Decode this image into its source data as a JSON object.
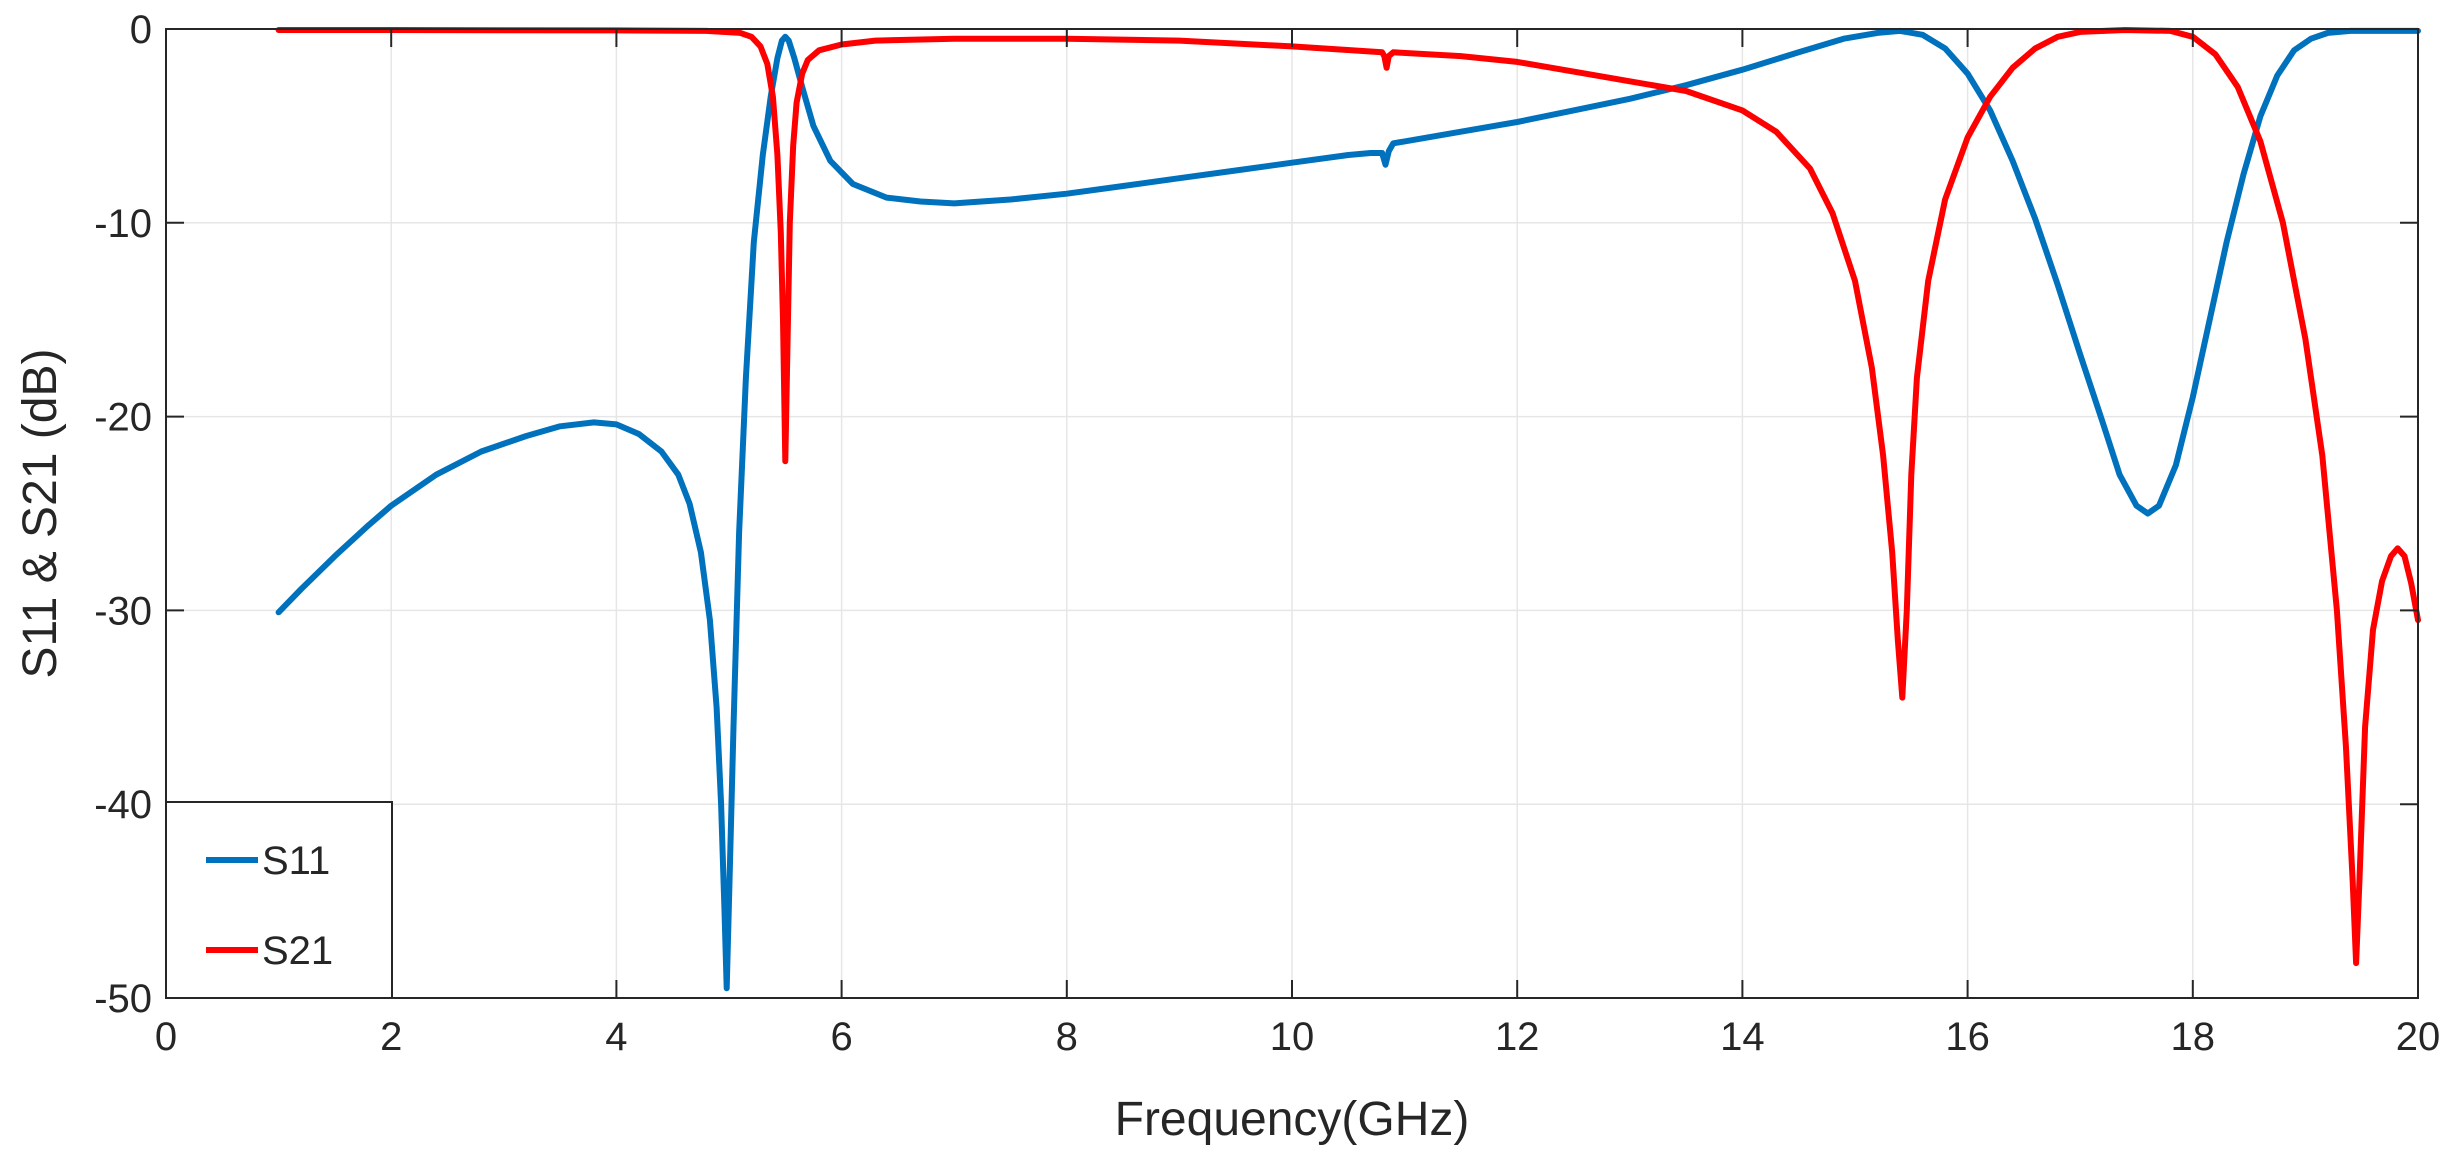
{
  "chart_data": {
    "type": "line",
    "title": "",
    "xlabel": "Frequency(GHz)",
    "ylabel": "S11 & S21 (dB)",
    "xlim": [
      0,
      20
    ],
    "ylim": [
      -50,
      0
    ],
    "xticks": [
      0,
      2,
      4,
      6,
      8,
      10,
      12,
      14,
      16,
      18,
      20
    ],
    "yticks": [
      0,
      -10,
      -20,
      -30,
      -40,
      -50
    ],
    "xtick_labels": [
      "0",
      "2",
      "4",
      "6",
      "8",
      "10",
      "12",
      "14",
      "16",
      "18",
      "20"
    ],
    "ytick_labels": [
      "0",
      "-10",
      "-20",
      "-30",
      "-40",
      "-50"
    ],
    "grid": true,
    "legend_position": "bottom-left",
    "series": [
      {
        "name": "S11",
        "color": "#0072bd",
        "points": [
          [
            1.0,
            -30.1
          ],
          [
            1.2,
            -28.9
          ],
          [
            1.5,
            -27.2
          ],
          [
            1.8,
            -25.6
          ],
          [
            2.0,
            -24.6
          ],
          [
            2.4,
            -23.0
          ],
          [
            2.8,
            -21.8
          ],
          [
            3.2,
            -21.0
          ],
          [
            3.5,
            -20.5
          ],
          [
            3.8,
            -20.3
          ],
          [
            4.0,
            -20.4
          ],
          [
            4.2,
            -20.9
          ],
          [
            4.4,
            -21.8
          ],
          [
            4.55,
            -23.0
          ],
          [
            4.65,
            -24.5
          ],
          [
            4.75,
            -27.0
          ],
          [
            4.83,
            -30.5
          ],
          [
            4.89,
            -35.0
          ],
          [
            4.93,
            -40.0
          ],
          [
            4.96,
            -45.5
          ],
          [
            4.98,
            -49.5
          ],
          [
            5.0,
            -45.0
          ],
          [
            5.04,
            -36.0
          ],
          [
            5.09,
            -26.0
          ],
          [
            5.15,
            -18.0
          ],
          [
            5.22,
            -11.0
          ],
          [
            5.3,
            -6.5
          ],
          [
            5.37,
            -3.5
          ],
          [
            5.43,
            -1.5
          ],
          [
            5.47,
            -0.6
          ],
          [
            5.5,
            -0.4
          ],
          [
            5.53,
            -0.6
          ],
          [
            5.58,
            -1.5
          ],
          [
            5.65,
            -3.0
          ],
          [
            5.75,
            -5.0
          ],
          [
            5.9,
            -6.8
          ],
          [
            6.1,
            -8.0
          ],
          [
            6.4,
            -8.7
          ],
          [
            6.7,
            -8.9
          ],
          [
            7.0,
            -9.0
          ],
          [
            7.5,
            -8.8
          ],
          [
            8.0,
            -8.5
          ],
          [
            8.5,
            -8.1
          ],
          [
            9.0,
            -7.7
          ],
          [
            9.5,
            -7.3
          ],
          [
            10.0,
            -6.9
          ],
          [
            10.5,
            -6.5
          ],
          [
            10.7,
            -6.4
          ],
          [
            10.8,
            -6.4
          ],
          [
            10.83,
            -7.0
          ],
          [
            10.86,
            -6.3
          ],
          [
            10.9,
            -5.9
          ],
          [
            11.0,
            -5.8
          ],
          [
            11.5,
            -5.3
          ],
          [
            12.0,
            -4.8
          ],
          [
            12.5,
            -4.2
          ],
          [
            13.0,
            -3.6
          ],
          [
            13.5,
            -2.9
          ],
          [
            14.0,
            -2.1
          ],
          [
            14.5,
            -1.2
          ],
          [
            14.9,
            -0.5
          ],
          [
            15.2,
            -0.2
          ],
          [
            15.4,
            -0.1
          ],
          [
            15.6,
            -0.3
          ],
          [
            15.8,
            -1.0
          ],
          [
            16.0,
            -2.3
          ],
          [
            16.2,
            -4.2
          ],
          [
            16.4,
            -6.8
          ],
          [
            16.6,
            -9.8
          ],
          [
            16.8,
            -13.2
          ],
          [
            17.0,
            -16.8
          ],
          [
            17.2,
            -20.3
          ],
          [
            17.35,
            -23.0
          ],
          [
            17.5,
            -24.6
          ],
          [
            17.6,
            -25.0
          ],
          [
            17.7,
            -24.6
          ],
          [
            17.85,
            -22.5
          ],
          [
            18.0,
            -19.0
          ],
          [
            18.15,
            -15.0
          ],
          [
            18.3,
            -11.0
          ],
          [
            18.45,
            -7.5
          ],
          [
            18.6,
            -4.5
          ],
          [
            18.75,
            -2.4
          ],
          [
            18.9,
            -1.1
          ],
          [
            19.05,
            -0.5
          ],
          [
            19.2,
            -0.2
          ],
          [
            19.4,
            -0.1
          ],
          [
            19.7,
            -0.1
          ],
          [
            20.0,
            -0.1
          ]
        ]
      },
      {
        "name": "S21",
        "color": "#ff0000",
        "points": [
          [
            1.0,
            -0.05
          ],
          [
            2.0,
            -0.05
          ],
          [
            3.0,
            -0.06
          ],
          [
            4.0,
            -0.07
          ],
          [
            4.8,
            -0.1
          ],
          [
            5.1,
            -0.2
          ],
          [
            5.2,
            -0.4
          ],
          [
            5.28,
            -0.9
          ],
          [
            5.34,
            -1.8
          ],
          [
            5.39,
            -3.5
          ],
          [
            5.43,
            -6.5
          ],
          [
            5.46,
            -10.5
          ],
          [
            5.48,
            -15.0
          ],
          [
            5.5,
            -22.3
          ],
          [
            5.52,
            -16.0
          ],
          [
            5.54,
            -10.0
          ],
          [
            5.57,
            -6.0
          ],
          [
            5.6,
            -3.8
          ],
          [
            5.65,
            -2.3
          ],
          [
            5.7,
            -1.6
          ],
          [
            5.8,
            -1.1
          ],
          [
            6.0,
            -0.8
          ],
          [
            6.3,
            -0.6
          ],
          [
            7.0,
            -0.5
          ],
          [
            8.0,
            -0.5
          ],
          [
            9.0,
            -0.6
          ],
          [
            10.0,
            -0.9
          ],
          [
            10.8,
            -1.2
          ],
          [
            10.82,
            -1.4
          ],
          [
            10.84,
            -2.0
          ],
          [
            10.86,
            -1.4
          ],
          [
            10.9,
            -1.2
          ],
          [
            11.5,
            -1.4
          ],
          [
            12.0,
            -1.7
          ],
          [
            12.5,
            -2.2
          ],
          [
            13.0,
            -2.7
          ],
          [
            13.5,
            -3.2
          ],
          [
            14.0,
            -4.2
          ],
          [
            14.3,
            -5.3
          ],
          [
            14.6,
            -7.2
          ],
          [
            14.8,
            -9.5
          ],
          [
            15.0,
            -13.0
          ],
          [
            15.15,
            -17.5
          ],
          [
            15.25,
            -22.0
          ],
          [
            15.33,
            -27.0
          ],
          [
            15.38,
            -31.5
          ],
          [
            15.42,
            -34.5
          ],
          [
            15.46,
            -30.0
          ],
          [
            15.5,
            -23.0
          ],
          [
            15.55,
            -18.0
          ],
          [
            15.65,
            -13.0
          ],
          [
            15.8,
            -8.8
          ],
          [
            16.0,
            -5.6
          ],
          [
            16.2,
            -3.5
          ],
          [
            16.4,
            -2.0
          ],
          [
            16.6,
            -1.0
          ],
          [
            16.8,
            -0.4
          ],
          [
            17.0,
            -0.15
          ],
          [
            17.4,
            -0.05
          ],
          [
            17.8,
            -0.1
          ],
          [
            18.0,
            -0.4
          ],
          [
            18.2,
            -1.3
          ],
          [
            18.4,
            -3.0
          ],
          [
            18.6,
            -5.8
          ],
          [
            18.8,
            -10.0
          ],
          [
            19.0,
            -16.0
          ],
          [
            19.15,
            -22.0
          ],
          [
            19.28,
            -30.0
          ],
          [
            19.36,
            -37.0
          ],
          [
            19.42,
            -44.0
          ],
          [
            19.45,
            -48.2
          ],
          [
            19.48,
            -44.0
          ],
          [
            19.53,
            -36.0
          ],
          [
            19.6,
            -31.0
          ],
          [
            19.68,
            -28.5
          ],
          [
            19.76,
            -27.2
          ],
          [
            19.82,
            -26.8
          ],
          [
            19.88,
            -27.2
          ],
          [
            19.94,
            -28.6
          ],
          [
            20.0,
            -30.5
          ]
        ]
      }
    ]
  }
}
